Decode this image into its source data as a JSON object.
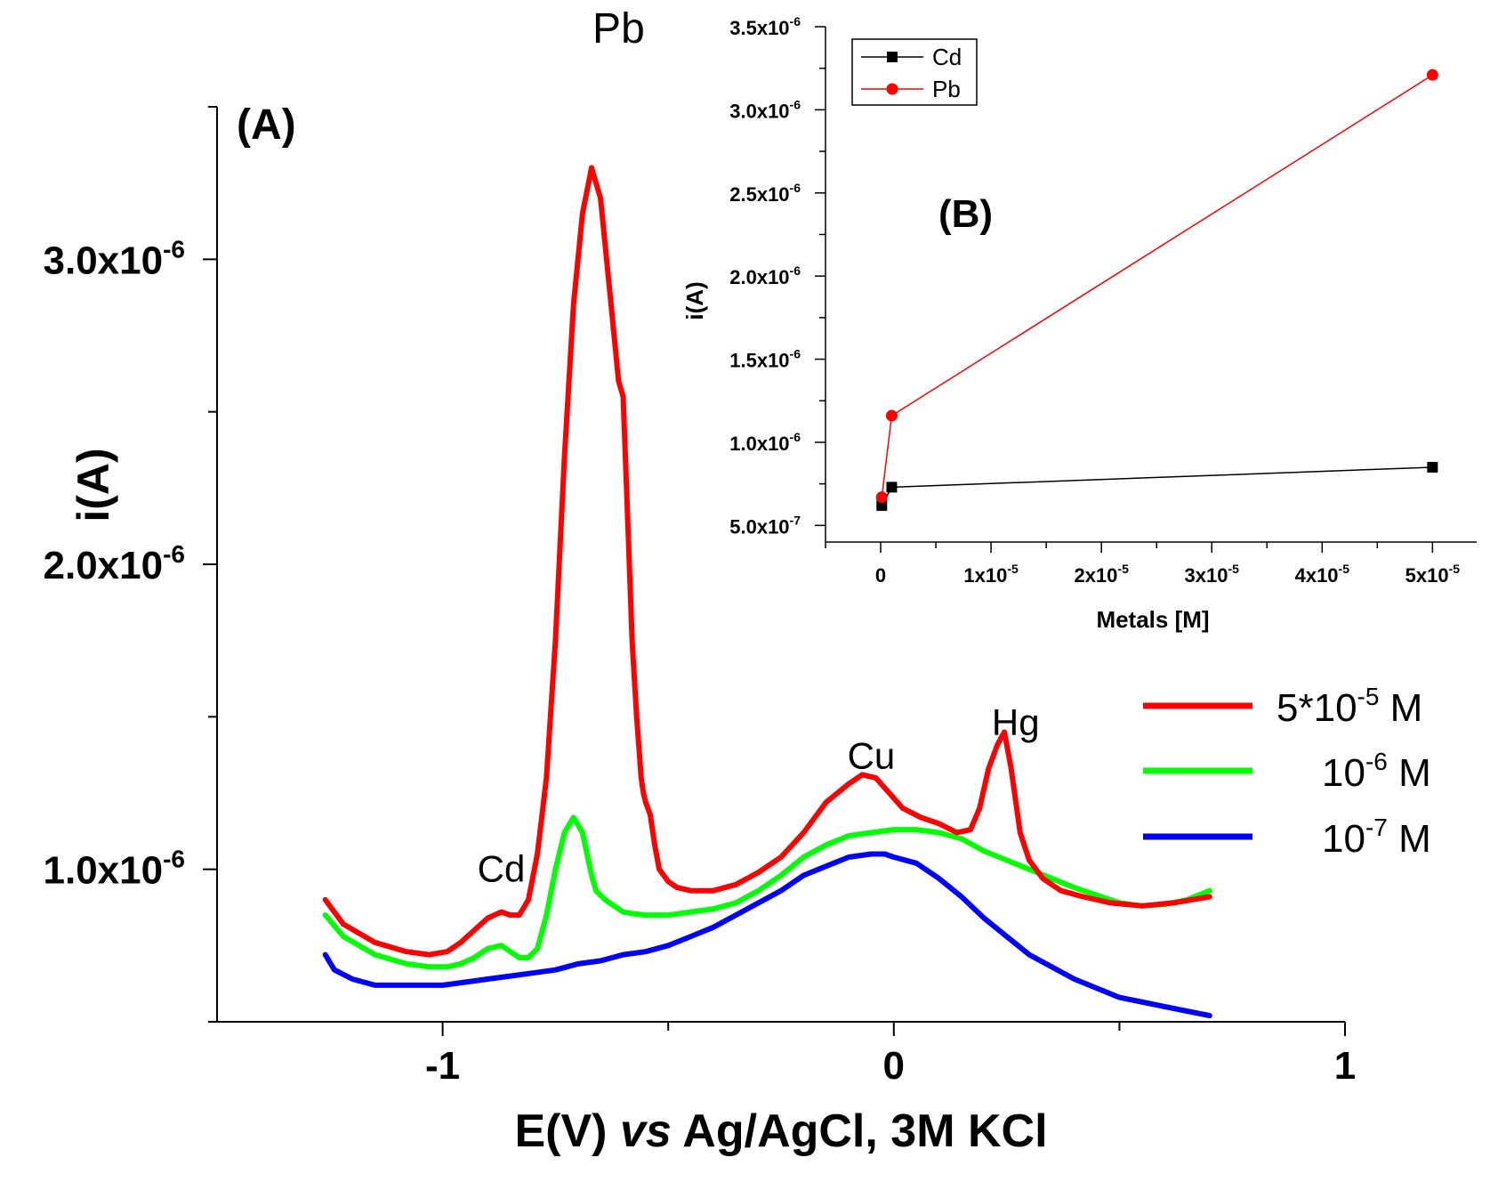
{
  "chart_data": [
    {
      "panel": "A",
      "type": "line",
      "panel_label": "(A)",
      "xlabel": {
        "main": "E(V) ",
        "italic": "vs",
        "rest": " Ag/AgCl, 3M KCl"
      },
      "ylabel": "i(A)",
      "xlim": [
        -1.5,
        1.0
      ],
      "ylim": [
        0.5,
        3.5
      ],
      "x_ticks": [
        {
          "value": -1,
          "label": "-1"
        },
        {
          "value": 0,
          "label": "0"
        },
        {
          "value": 1,
          "label": "1"
        }
      ],
      "x_minor_ticks": [
        -0.5,
        0.5
      ],
      "y_ticks": [
        {
          "value": 1.0,
          "mant": "1.0x10",
          "exp": "-6"
        },
        {
          "value": 2.0,
          "mant": "2.0x10",
          "exp": "-6"
        },
        {
          "value": 3.0,
          "mant": "3.0x10",
          "exp": "-6"
        }
      ],
      "y_minor_ticks": [
        0.5,
        1.5,
        2.5,
        3.5
      ],
      "y_unit_note": "y values in units of 1e-6 A",
      "peak_annotations": [
        {
          "text": "Cd",
          "x": -0.87,
          "y": 0.96
        },
        {
          "text": "Pb",
          "x": -0.61,
          "y": 3.71
        },
        {
          "text": "Cu",
          "x": -0.05,
          "y": 1.33
        },
        {
          "text": "Hg",
          "x": 0.27,
          "y": 1.44
        }
      ],
      "series": [
        {
          "name": "5*10-5 M",
          "legend_main": "5*10",
          "legend_exp": "-5",
          "legend_unit": " M",
          "color": "#ff0000",
          "x": [
            -1.26,
            -1.22,
            -1.15,
            -1.08,
            -1.03,
            -0.99,
            -0.96,
            -0.93,
            -0.9,
            -0.87,
            -0.85,
            -0.83,
            -0.81,
            -0.79,
            -0.77,
            -0.75,
            -0.73,
            -0.71,
            -0.69,
            -0.67,
            -0.65,
            -0.63,
            -0.61,
            -0.6,
            -0.59,
            -0.58,
            -0.57,
            -0.56,
            -0.555,
            -0.55,
            -0.54,
            -0.53,
            -0.52,
            -0.5,
            -0.48,
            -0.45,
            -0.4,
            -0.35,
            -0.3,
            -0.25,
            -0.2,
            -0.15,
            -0.1,
            -0.07,
            -0.04,
            -0.01,
            0.02,
            0.06,
            0.1,
            0.14,
            0.17,
            0.19,
            0.21,
            0.23,
            0.245,
            0.26,
            0.28,
            0.3,
            0.33,
            0.37,
            0.42,
            0.48,
            0.55,
            0.62,
            0.7
          ],
          "y": [
            0.9,
            0.82,
            0.76,
            0.73,
            0.72,
            0.73,
            0.76,
            0.8,
            0.84,
            0.86,
            0.85,
            0.85,
            0.9,
            1.05,
            1.3,
            1.75,
            2.35,
            2.85,
            3.15,
            3.3,
            3.2,
            2.9,
            2.6,
            2.55,
            2.15,
            1.75,
            1.5,
            1.3,
            1.25,
            1.22,
            1.18,
            1.08,
            1.0,
            0.96,
            0.94,
            0.93,
            0.93,
            0.95,
            0.99,
            1.04,
            1.12,
            1.22,
            1.28,
            1.31,
            1.3,
            1.25,
            1.2,
            1.17,
            1.15,
            1.12,
            1.13,
            1.2,
            1.33,
            1.41,
            1.45,
            1.33,
            1.12,
            1.03,
            0.97,
            0.93,
            0.91,
            0.89,
            0.88,
            0.89,
            0.91
          ]
        },
        {
          "name": "10-6 M",
          "legend_main": "10",
          "legend_exp": "-6",
          "legend_unit": " M",
          "color": "#00ff00",
          "x": [
            -1.26,
            -1.22,
            -1.15,
            -1.08,
            -1.03,
            -0.99,
            -0.96,
            -0.93,
            -0.9,
            -0.87,
            -0.85,
            -0.83,
            -0.81,
            -0.79,
            -0.77,
            -0.75,
            -0.73,
            -0.71,
            -0.69,
            -0.67,
            -0.66,
            -0.64,
            -0.62,
            -0.6,
            -0.58,
            -0.55,
            -0.5,
            -0.45,
            -0.4,
            -0.35,
            -0.3,
            -0.25,
            -0.2,
            -0.15,
            -0.1,
            -0.05,
            0.0,
            0.05,
            0.1,
            0.15,
            0.2,
            0.3,
            0.4,
            0.5,
            0.55,
            0.6,
            0.65,
            0.7
          ],
          "y": [
            0.85,
            0.78,
            0.72,
            0.69,
            0.68,
            0.68,
            0.69,
            0.71,
            0.74,
            0.75,
            0.73,
            0.71,
            0.71,
            0.74,
            0.85,
            1.0,
            1.12,
            1.17,
            1.12,
            0.98,
            0.93,
            0.9,
            0.88,
            0.86,
            0.855,
            0.85,
            0.85,
            0.86,
            0.87,
            0.89,
            0.93,
            0.98,
            1.04,
            1.08,
            1.11,
            1.12,
            1.13,
            1.13,
            1.12,
            1.1,
            1.06,
            1.0,
            0.94,
            0.89,
            0.88,
            0.885,
            0.9,
            0.93
          ]
        },
        {
          "name": "10-7 M",
          "legend_main": "10",
          "legend_exp": "-7",
          "legend_unit": " M",
          "color": "#0000ff",
          "x": [
            -1.26,
            -1.24,
            -1.2,
            -1.15,
            -1.1,
            -1.05,
            -1.0,
            -0.95,
            -0.9,
            -0.85,
            -0.8,
            -0.75,
            -0.7,
            -0.65,
            -0.6,
            -0.55,
            -0.5,
            -0.45,
            -0.4,
            -0.35,
            -0.3,
            -0.25,
            -0.2,
            -0.15,
            -0.1,
            -0.05,
            -0.02,
            0.0,
            0.05,
            0.1,
            0.15,
            0.2,
            0.3,
            0.4,
            0.5,
            0.6,
            0.7
          ],
          "y": [
            0.72,
            0.67,
            0.64,
            0.62,
            0.62,
            0.62,
            0.62,
            0.63,
            0.64,
            0.65,
            0.66,
            0.67,
            0.69,
            0.7,
            0.72,
            0.73,
            0.75,
            0.78,
            0.81,
            0.85,
            0.89,
            0.93,
            0.98,
            1.01,
            1.04,
            1.05,
            1.05,
            1.04,
            1.02,
            0.97,
            0.91,
            0.84,
            0.72,
            0.64,
            0.58,
            0.55,
            0.52
          ]
        }
      ]
    },
    {
      "panel": "B",
      "type": "line",
      "panel_label": "(B)",
      "xlabel": "Metals [M]",
      "ylabel": "i(A)",
      "xlim": [
        -5e-06,
        5.4e-05
      ],
      "ylim": [
        0.4,
        3.5
      ],
      "x_ticks": [
        {
          "value": 0,
          "mant": "0",
          "exp": ""
        },
        {
          "value": 1e-05,
          "mant": "1x10",
          "exp": "-5"
        },
        {
          "value": 2e-05,
          "mant": "2x10",
          "exp": "-5"
        },
        {
          "value": 3e-05,
          "mant": "3x10",
          "exp": "-5"
        },
        {
          "value": 4e-05,
          "mant": "4x10",
          "exp": "-5"
        },
        {
          "value": 5e-05,
          "mant": "5x10",
          "exp": "-5"
        }
      ],
      "x_minor_ticks": [
        -5e-06,
        5e-06,
        1.5e-05,
        2.5e-05,
        3.5e-05,
        4.5e-05
      ],
      "y_ticks": [
        {
          "value": 0.5,
          "mant": "5.0x10",
          "exp": "-7"
        },
        {
          "value": 1.0,
          "mant": "1.0x10",
          "exp": "-6"
        },
        {
          "value": 1.5,
          "mant": "1.5x10",
          "exp": "-6"
        },
        {
          "value": 2.0,
          "mant": "2.0x10",
          "exp": "-6"
        },
        {
          "value": 2.5,
          "mant": "2.5x10",
          "exp": "-6"
        },
        {
          "value": 3.0,
          "mant": "3.0x10",
          "exp": "-6"
        },
        {
          "value": 3.5,
          "mant": "3.5x10",
          "exp": "-6"
        }
      ],
      "y_minor_ticks": [
        0.75,
        1.25,
        1.75,
        2.25,
        2.75,
        3.25
      ],
      "y_unit_note": "y values in units of 1e-6 A",
      "series": [
        {
          "name": "Cd",
          "color": "#000000",
          "marker": "square",
          "x": [
            1e-07,
            1e-06,
            5e-05
          ],
          "y": [
            0.62,
            0.73,
            0.85
          ]
        },
        {
          "name": "Pb",
          "color": "#ff0000",
          "marker": "circle",
          "x": [
            1e-07,
            1e-06,
            5e-05
          ],
          "y": [
            0.67,
            1.16,
            3.21
          ]
        }
      ]
    }
  ]
}
